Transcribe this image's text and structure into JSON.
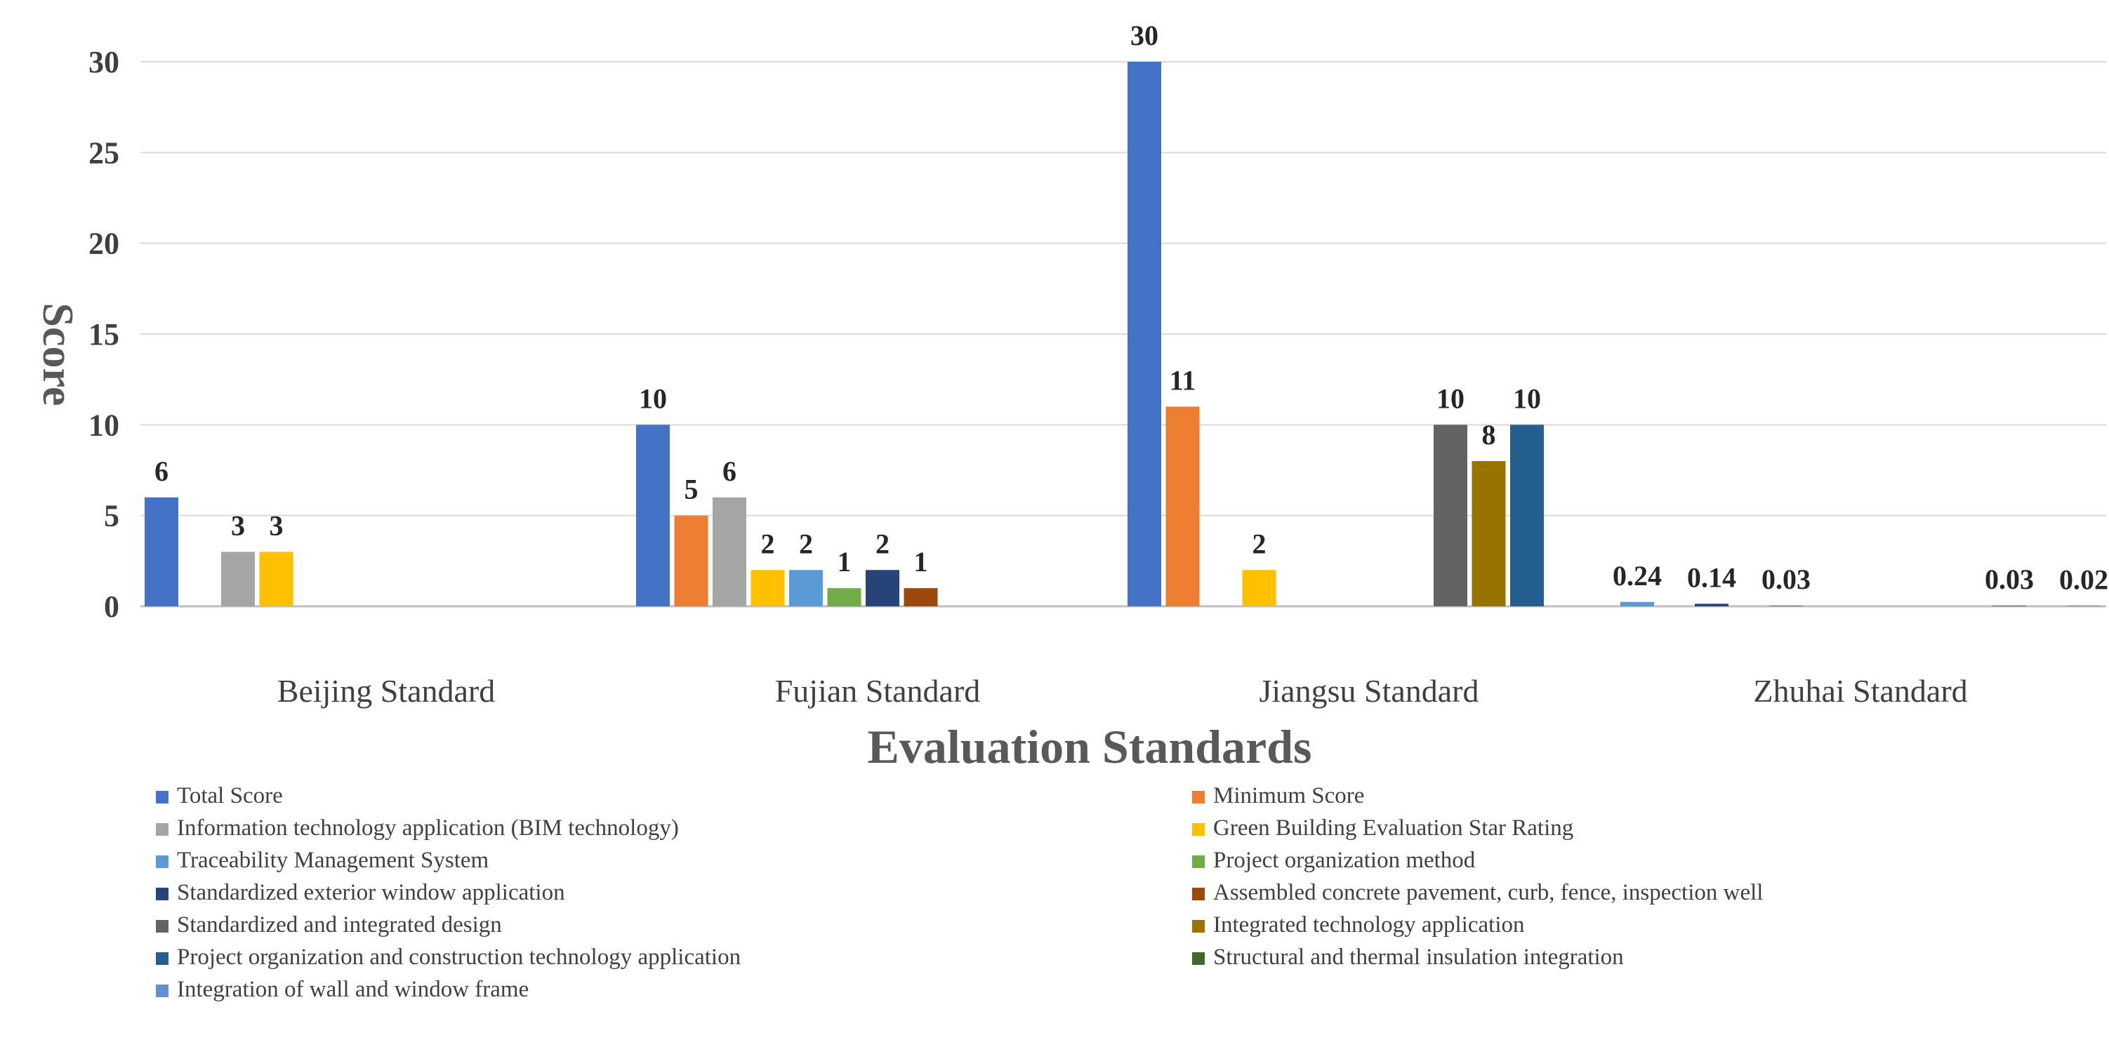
{
  "chart_data": {
    "type": "bar",
    "title": "",
    "xlabel": "Evaluation Standards",
    "ylabel": "Score",
    "ylim": [
      0,
      30
    ],
    "yticks": [
      0,
      5,
      10,
      15,
      20,
      25,
      30
    ],
    "grid": true,
    "legend_position": "bottom",
    "categories": [
      "Beijing Standard",
      "Fujian Standard",
      "Jiangsu Standard",
      "Zhuhai Standard"
    ],
    "series": [
      {
        "name": "Total Score",
        "color": "#4472C4",
        "values": [
          6,
          10,
          30,
          null
        ]
      },
      {
        "name": "Minimum Score",
        "color": "#ED7D31",
        "values": [
          null,
          5,
          11,
          null
        ]
      },
      {
        "name": "Information technology application (BIM technology)",
        "color": "#A5A5A5",
        "values": [
          3,
          6,
          null,
          null
        ]
      },
      {
        "name": "Green Building Evaluation Star Rating",
        "color": "#FFC000",
        "values": [
          3,
          2,
          2,
          null
        ]
      },
      {
        "name": "Traceability Management System",
        "color": "#5B9BD5",
        "values": [
          null,
          2,
          null,
          0.24
        ]
      },
      {
        "name": "Project organization method",
        "color": "#70AD47",
        "values": [
          null,
          1,
          null,
          null
        ]
      },
      {
        "name": "Standardized exterior window application",
        "color": "#264478",
        "values": [
          null,
          2,
          null,
          0.14
        ]
      },
      {
        "name": "Assembled concrete pavement, curb, fence, inspection well",
        "color": "#9E480E",
        "values": [
          null,
          1,
          null,
          0.03
        ]
      },
      {
        "name": "Standardized and integrated design",
        "color": "#636363",
        "values": [
          null,
          null,
          10,
          null
        ]
      },
      {
        "name": "Integrated technology application",
        "color": "#997300",
        "values": [
          null,
          null,
          8,
          null
        ]
      },
      {
        "name": "Project organization and construction technology application",
        "color": "#255E91",
        "values": [
          null,
          null,
          10,
          0.03
        ]
      },
      {
        "name": "Structural and thermal insulation integration",
        "color": "#43682B",
        "values": [
          null,
          null,
          null,
          0.02
        ]
      },
      {
        "name": "Integration of wall and window frame",
        "color": "#698ED0",
        "values": [
          null,
          null,
          null,
          0.02
        ]
      }
    ]
  }
}
